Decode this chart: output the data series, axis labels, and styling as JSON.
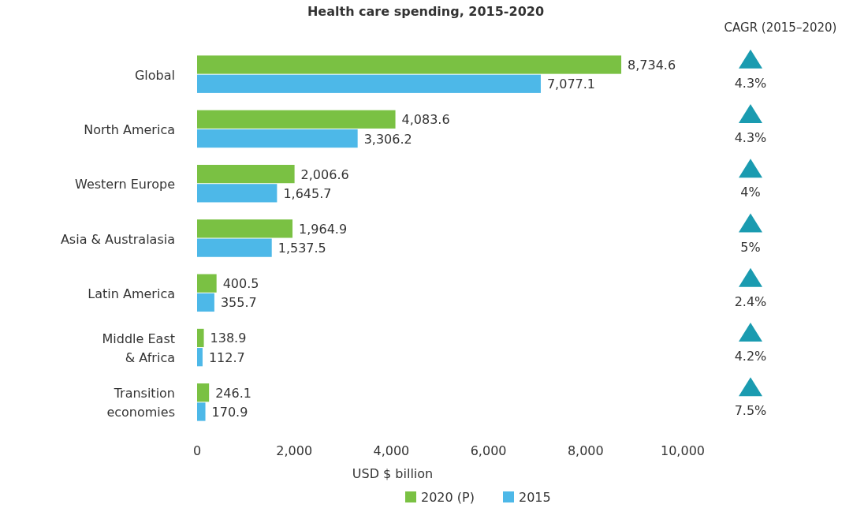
{
  "chart_data": {
    "type": "bar",
    "orientation": "horizontal",
    "title": "Health care spending, 2015-2020",
    "xlabel": "USD $ billion",
    "categories": [
      "Global",
      "North America",
      "Western Europe",
      "Asia & Australasia",
      "Latin America",
      "Middle East & Africa",
      "Transition economies"
    ],
    "series": [
      {
        "name": "2020 (P)",
        "color": "#7ac143",
        "values": [
          8734.6,
          4083.6,
          2006.6,
          1964.9,
          400.5,
          138.9,
          246.1
        ],
        "value_labels": [
          "8,734.6",
          "4,083.6",
          "2,006.6",
          "1,964.9",
          "400.5",
          "138.9",
          "246.1"
        ]
      },
      {
        "name": "2015",
        "color": "#4db8e8",
        "values": [
          7077.1,
          3306.2,
          1645.7,
          1537.5,
          355.7,
          112.7,
          170.9
        ],
        "value_labels": [
          "7,077.1",
          "3,306.2",
          "1,645.7",
          "1,537.5",
          "355.7",
          "112.7",
          "170.9"
        ]
      }
    ],
    "xlim": [
      0,
      10000
    ],
    "xticks": [
      {
        "value": 0,
        "label": "0"
      },
      {
        "value": 2000,
        "label": "2,000"
      },
      {
        "value": 4000,
        "label": "4,000"
      },
      {
        "value": 6000,
        "label": "6,000"
      },
      {
        "value": 8000,
        "label": "8,000"
      },
      {
        "value": 10000,
        "label": "10,000"
      }
    ],
    "legend": "bottom",
    "grid": false,
    "annotations": [
      "CAGR (2015–2020)",
      "4.3%",
      "4.3%",
      "4%",
      "5%",
      "2.4%",
      "4.2%",
      "7.5%"
    ]
  }
}
